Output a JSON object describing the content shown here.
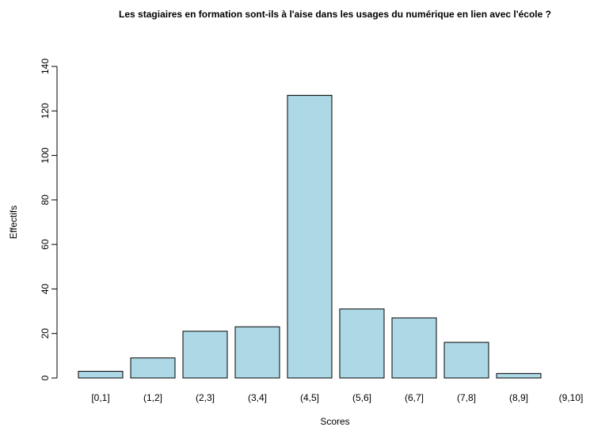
{
  "chart_data": {
    "type": "bar",
    "title": "Les stagiaires en formation sont-ils à l'aise dans les usages du numérique en lien avec l'école ?",
    "xlabel": "Scores",
    "ylabel": "Effectifs",
    "categories": [
      "[0,1]",
      "(1,2]",
      "(2,3]",
      "(3,4]",
      "(4,5]",
      "(5,6]",
      "(6,7]",
      "(7,8]",
      "(8,9]",
      "(9,10]"
    ],
    "values": [
      3,
      9,
      21,
      23,
      127,
      31,
      27,
      16,
      2,
      0
    ],
    "color": "#add8e6",
    "ylim": [
      0,
      140
    ],
    "yticks": [
      0,
      20,
      40,
      60,
      80,
      100,
      120,
      140
    ],
    "grid": false
  }
}
